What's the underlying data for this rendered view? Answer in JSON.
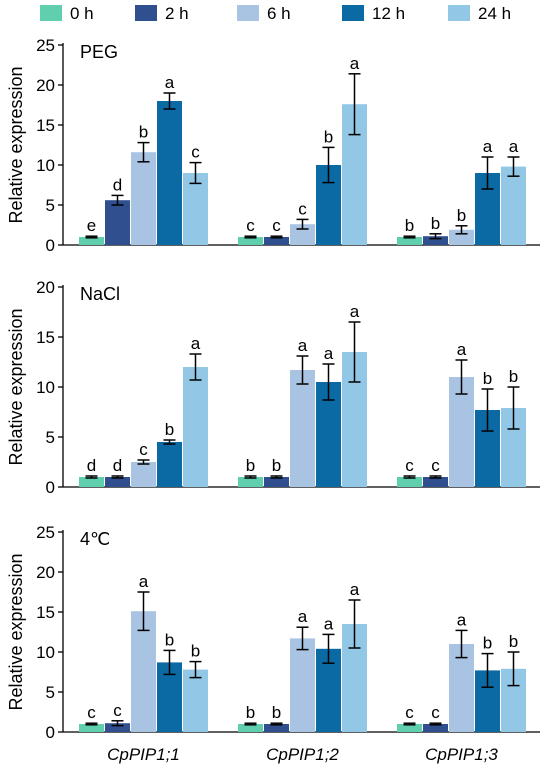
{
  "legend": {
    "entries": [
      {
        "label": "0 h",
        "color": "#5fcfae"
      },
      {
        "label": "2 h",
        "color": "#2f4f8f"
      },
      {
        "label": "6 h",
        "color": "#a9c3e3"
      },
      {
        "label": "12 h",
        "color": "#0b6aa4"
      },
      {
        "label": "24 h",
        "color": "#92c8e6"
      }
    ]
  },
  "chart_data": [
    {
      "type": "bar",
      "panel_label": "PEG",
      "ylabel": "Relative expression",
      "ylim": [
        0,
        25
      ],
      "yticks": [
        0,
        5,
        10,
        15,
        20,
        25
      ],
      "categories": [
        "CpPIP1;1",
        "CpPIP1;2",
        "CpPIP1;3"
      ],
      "show_xlabels": false,
      "series": [
        {
          "name": "0 h",
          "values": [
            1.0,
            1.0,
            1.0
          ],
          "errors": [
            0.1,
            0.1,
            0.1
          ],
          "letters": [
            "e",
            "c",
            "b"
          ]
        },
        {
          "name": "2 h",
          "values": [
            5.6,
            1.0,
            1.1
          ],
          "errors": [
            0.6,
            0.1,
            0.3
          ],
          "letters": [
            "d",
            "c",
            "b"
          ]
        },
        {
          "name": "6 h",
          "values": [
            11.6,
            2.6,
            1.9
          ],
          "errors": [
            1.2,
            0.6,
            0.5
          ],
          "letters": [
            "b",
            "c",
            "b"
          ]
        },
        {
          "name": "12 h",
          "values": [
            18.0,
            10.0,
            9.0
          ],
          "errors": [
            1.0,
            2.2,
            2.0
          ],
          "letters": [
            "a",
            "b",
            "a"
          ]
        },
        {
          "name": "24 h",
          "values": [
            9.0,
            17.6,
            9.8
          ],
          "errors": [
            1.3,
            3.8,
            1.2
          ],
          "letters": [
            "c",
            "a",
            "a"
          ]
        }
      ]
    },
    {
      "type": "bar",
      "panel_label": "NaCl",
      "ylabel": "Relative expression",
      "ylim": [
        0,
        20
      ],
      "yticks": [
        0,
        5,
        10,
        15,
        20
      ],
      "categories": [
        "CpPIP1;1",
        "CpPIP1;2",
        "CpPIP1;3"
      ],
      "show_xlabels": false,
      "series": [
        {
          "name": "0 h",
          "values": [
            1.0,
            1.0,
            1.0
          ],
          "errors": [
            0.1,
            0.1,
            0.1
          ],
          "letters": [
            "d",
            "b",
            "c"
          ]
        },
        {
          "name": "2 h",
          "values": [
            1.0,
            1.0,
            1.0
          ],
          "errors": [
            0.1,
            0.1,
            0.1
          ],
          "letters": [
            "d",
            "b",
            "c"
          ]
        },
        {
          "name": "6 h",
          "values": [
            2.5,
            11.7,
            11.0
          ],
          "errors": [
            0.2,
            1.4,
            1.7
          ],
          "letters": [
            "c",
            "a",
            "a"
          ]
        },
        {
          "name": "12 h",
          "values": [
            4.5,
            10.5,
            7.7
          ],
          "errors": [
            0.2,
            1.8,
            2.1
          ],
          "letters": [
            "b",
            "a",
            "b"
          ]
        },
        {
          "name": "24 h",
          "values": [
            12.0,
            13.5,
            7.9
          ],
          "errors": [
            1.3,
            3.0,
            2.1
          ],
          "letters": [
            "a",
            "a",
            "b"
          ]
        }
      ]
    },
    {
      "type": "bar",
      "panel_label": "4℃",
      "ylabel": "Relative expression",
      "ylim": [
        0,
        25
      ],
      "yticks": [
        0,
        5,
        10,
        15,
        20,
        25
      ],
      "categories": [
        "CpPIP1;1",
        "CpPIP1;2",
        "CpPIP1;3"
      ],
      "show_xlabels": true,
      "series": [
        {
          "name": "0 h",
          "values": [
            1.0,
            1.0,
            1.0
          ],
          "errors": [
            0.1,
            0.1,
            0.1
          ],
          "letters": [
            "c",
            "b",
            "c"
          ]
        },
        {
          "name": "2 h",
          "values": [
            1.1,
            1.0,
            1.0
          ],
          "errors": [
            0.3,
            0.1,
            0.1
          ],
          "letters": [
            "c",
            "b",
            "c"
          ]
        },
        {
          "name": "6 h",
          "values": [
            15.1,
            11.7,
            11.0
          ],
          "errors": [
            2.4,
            1.4,
            1.7
          ],
          "letters": [
            "a",
            "a",
            "a"
          ]
        },
        {
          "name": "12 h",
          "values": [
            8.7,
            10.4,
            7.7
          ],
          "errors": [
            1.5,
            1.8,
            2.1
          ],
          "letters": [
            "b",
            "a",
            "b"
          ]
        },
        {
          "name": "24 h",
          "values": [
            7.8,
            13.5,
            7.9
          ],
          "errors": [
            1.0,
            3.0,
            2.1
          ],
          "letters": [
            "b",
            "a",
            "b"
          ]
        }
      ]
    }
  ]
}
